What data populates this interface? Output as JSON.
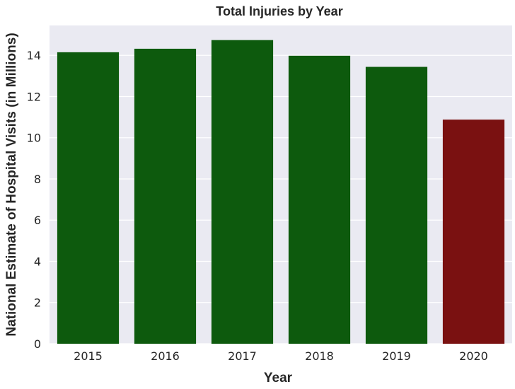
{
  "chart_data": {
    "type": "bar",
    "title": "Total Injuries by Year",
    "xlabel": "Year",
    "ylabel": "National Estimate of Hospital Visits (in Millions)",
    "categories": [
      "2015",
      "2016",
      "2017",
      "2018",
      "2019",
      "2020"
    ],
    "values": [
      14.15,
      14.32,
      14.74,
      13.98,
      13.44,
      10.88
    ],
    "bar_colors": [
      "#0d5a0d",
      "#0d5a0d",
      "#0d5a0d",
      "#0d5a0d",
      "#0d5a0d",
      "#7a1111"
    ],
    "ylim": [
      0,
      15.45
    ],
    "yticks": [
      0,
      2,
      4,
      6,
      8,
      10,
      12,
      14
    ],
    "grid": true,
    "background_color": "#eaeaf2",
    "grid_color": "#ffffff"
  }
}
